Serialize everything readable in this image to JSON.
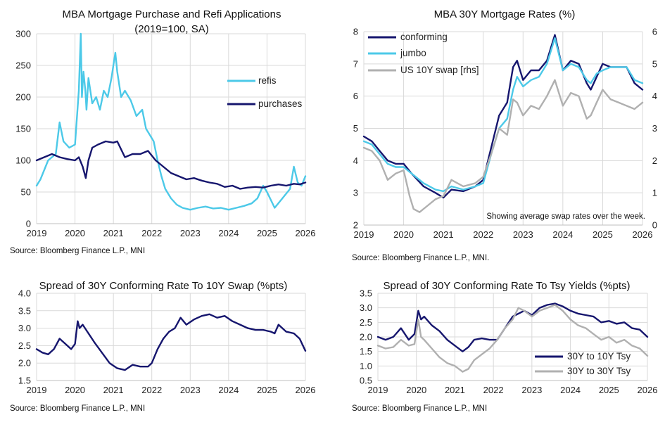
{
  "chart_data": [
    {
      "type": "line",
      "title": "MBA Mortgage Purchase and Refi Applications",
      "subtitle": "(2019=100, SA)",
      "source": "Source: Bloomberg Finance L.P., MNI",
      "xlim": [
        2019,
        2026
      ],
      "ylim": [
        0,
        300
      ],
      "x_ticks": [
        2019,
        2020,
        2021,
        2022,
        2023,
        2024,
        2025,
        2026
      ],
      "y_ticks": [
        0,
        50,
        100,
        150,
        200,
        250,
        300
      ],
      "legend_position": "right",
      "series": [
        {
          "name": "refis",
          "color": "#4cc9e8",
          "x": [
            2019.0,
            2019.1,
            2019.3,
            2019.5,
            2019.6,
            2019.7,
            2019.85,
            2020.0,
            2020.1,
            2020.15,
            2020.18,
            2020.22,
            2020.27,
            2020.3,
            2020.35,
            2020.45,
            2020.55,
            2020.65,
            2020.75,
            2020.85,
            2020.95,
            2021.0,
            2021.05,
            2021.1,
            2021.2,
            2021.3,
            2021.45,
            2021.6,
            2021.75,
            2021.85,
            2021.95,
            2022.05,
            2022.15,
            2022.25,
            2022.35,
            2022.5,
            2022.65,
            2022.8,
            2023.0,
            2023.2,
            2023.4,
            2023.6,
            2023.8,
            2024.0,
            2024.2,
            2024.4,
            2024.6,
            2024.75,
            2024.9,
            2025.0,
            2025.2,
            2025.4,
            2025.6,
            2025.7,
            2025.8,
            2025.9,
            2026.0
          ],
          "y": [
            60,
            70,
            100,
            110,
            160,
            130,
            120,
            125,
            210,
            300,
            200,
            240,
            210,
            180,
            230,
            190,
            200,
            180,
            210,
            200,
            230,
            250,
            270,
            240,
            200,
            210,
            195,
            170,
            180,
            150,
            140,
            130,
            100,
            75,
            55,
            40,
            30,
            25,
            22,
            25,
            27,
            24,
            25,
            22,
            25,
            28,
            32,
            40,
            60,
            50,
            25,
            40,
            55,
            90,
            65,
            60,
            75
          ]
        },
        {
          "name": "purchases",
          "color": "#16166e",
          "x": [
            2019.0,
            2019.2,
            2019.4,
            2019.6,
            2019.8,
            2020.0,
            2020.1,
            2020.2,
            2020.28,
            2020.35,
            2020.45,
            2020.6,
            2020.8,
            2021.0,
            2021.1,
            2021.3,
            2021.5,
            2021.7,
            2021.9,
            2022.1,
            2022.3,
            2022.5,
            2022.7,
            2022.9,
            2023.1,
            2023.3,
            2023.5,
            2023.7,
            2023.9,
            2024.1,
            2024.3,
            2024.5,
            2024.7,
            2024.9,
            2025.1,
            2025.3,
            2025.5,
            2025.7,
            2025.85,
            2026.0
          ],
          "y": [
            100,
            105,
            110,
            105,
            102,
            100,
            105,
            90,
            72,
            100,
            120,
            125,
            130,
            128,
            130,
            105,
            110,
            110,
            115,
            100,
            90,
            80,
            75,
            70,
            72,
            68,
            65,
            63,
            58,
            60,
            55,
            57,
            58,
            57,
            60,
            62,
            60,
            63,
            62,
            65
          ]
        }
      ]
    },
    {
      "type": "line",
      "title": "MBA 30Y Mortgage Rates (%)",
      "source": "Source: Bloomberg Finance L.P., MNI.",
      "annotation": "Showing average swap rates over the week.",
      "xlim": [
        2019,
        2026
      ],
      "ylim": [
        2,
        8
      ],
      "y2lim": [
        0,
        6
      ],
      "x_ticks": [
        2019,
        2020,
        2021,
        2022,
        2023,
        2024,
        2025,
        2026
      ],
      "y_ticks": [
        2,
        3,
        4,
        5,
        6,
        7,
        8
      ],
      "y2_ticks": [
        0,
        1,
        2,
        3,
        4,
        5,
        6
      ],
      "legend_position": "top-left",
      "series": [
        {
          "name": "conforming",
          "color": "#16166e",
          "axis": "left",
          "x": [
            2019.0,
            2019.2,
            2019.4,
            2019.6,
            2019.8,
            2020.0,
            2020.2,
            2020.5,
            2020.8,
            2021.0,
            2021.2,
            2021.5,
            2021.8,
            2022.0,
            2022.2,
            2022.4,
            2022.6,
            2022.75,
            2022.85,
            2023.0,
            2023.2,
            2023.4,
            2023.6,
            2023.8,
            2024.0,
            2024.2,
            2024.4,
            2024.6,
            2024.7,
            2024.85,
            2025.0,
            2025.2,
            2025.4,
            2025.6,
            2025.8,
            2026.0
          ],
          "y": [
            4.75,
            4.6,
            4.3,
            4.0,
            3.9,
            3.9,
            3.6,
            3.2,
            3.0,
            2.85,
            3.1,
            3.05,
            3.2,
            3.4,
            4.4,
            5.4,
            5.8,
            6.9,
            7.1,
            6.5,
            6.8,
            6.8,
            7.1,
            7.9,
            6.8,
            7.1,
            7.0,
            6.4,
            6.2,
            6.6,
            7.0,
            6.9,
            6.9,
            6.9,
            6.4,
            6.2
          ]
        },
        {
          "name": "jumbo",
          "color": "#4cc9e8",
          "axis": "left",
          "x": [
            2019.0,
            2019.2,
            2019.4,
            2019.6,
            2019.8,
            2020.0,
            2020.2,
            2020.5,
            2020.8,
            2021.0,
            2021.2,
            2021.5,
            2021.8,
            2022.0,
            2022.2,
            2022.4,
            2022.6,
            2022.75,
            2022.85,
            2023.0,
            2023.2,
            2023.4,
            2023.6,
            2023.8,
            2024.0,
            2024.2,
            2024.4,
            2024.6,
            2024.7,
            2024.85,
            2025.0,
            2025.2,
            2025.4,
            2025.6,
            2025.8,
            2026.0
          ],
          "y": [
            4.6,
            4.5,
            4.2,
            3.9,
            3.8,
            3.8,
            3.6,
            3.3,
            3.1,
            3.05,
            3.2,
            3.1,
            3.2,
            3.3,
            4.2,
            5.0,
            5.3,
            6.2,
            6.6,
            6.3,
            6.5,
            6.6,
            7.0,
            7.8,
            6.8,
            7.0,
            6.9,
            6.5,
            6.4,
            6.7,
            6.8,
            6.9,
            6.9,
            6.9,
            6.5,
            6.4
          ]
        },
        {
          "name": "US 10Y swap [rhs]",
          "color": "#b0b0b0",
          "axis": "right",
          "x": [
            2019.0,
            2019.2,
            2019.4,
            2019.6,
            2019.8,
            2020.0,
            2020.15,
            2020.25,
            2020.4,
            2020.6,
            2020.8,
            2021.0,
            2021.2,
            2021.5,
            2021.8,
            2022.0,
            2022.2,
            2022.4,
            2022.6,
            2022.75,
            2022.85,
            2023.0,
            2023.2,
            2023.4,
            2023.6,
            2023.8,
            2024.0,
            2024.2,
            2024.4,
            2024.6,
            2024.7,
            2024.85,
            2025.0,
            2025.2,
            2025.4,
            2025.6,
            2025.8,
            2026.0
          ],
          "y": [
            2.4,
            2.3,
            2.0,
            1.4,
            1.6,
            1.7,
            0.9,
            0.5,
            0.4,
            0.6,
            0.8,
            0.9,
            1.4,
            1.2,
            1.3,
            1.5,
            2.2,
            3.0,
            2.8,
            3.9,
            3.8,
            3.4,
            3.7,
            3.6,
            4.0,
            4.5,
            3.7,
            4.1,
            4.0,
            3.3,
            3.4,
            3.8,
            4.2,
            3.9,
            3.8,
            3.7,
            3.6,
            3.8
          ]
        }
      ]
    },
    {
      "type": "line",
      "title": "Spread of 30Y Conforming Rate To 10Y Swap (%pts)",
      "source": "Source: Bloomberg Finance L.P., MNI",
      "xlim": [
        2019,
        2026
      ],
      "ylim": [
        1.5,
        4.0
      ],
      "x_ticks": [
        2019,
        2020,
        2021,
        2022,
        2023,
        2024,
        2025,
        2026
      ],
      "y_ticks": [
        1.5,
        2.0,
        2.5,
        3.0,
        3.5,
        4.0
      ],
      "series": [
        {
          "name": "",
          "color": "#16166e",
          "x": [
            2019.0,
            2019.15,
            2019.3,
            2019.45,
            2019.6,
            2019.75,
            2019.9,
            2020.0,
            2020.07,
            2020.12,
            2020.2,
            2020.35,
            2020.5,
            2020.7,
            2020.9,
            2021.1,
            2021.3,
            2021.5,
            2021.7,
            2021.9,
            2022.0,
            2022.15,
            2022.3,
            2022.45,
            2022.6,
            2022.75,
            2022.9,
            2023.1,
            2023.3,
            2023.5,
            2023.7,
            2023.9,
            2024.1,
            2024.3,
            2024.5,
            2024.7,
            2024.9,
            2025.1,
            2025.2,
            2025.3,
            2025.5,
            2025.7,
            2025.85,
            2026.0
          ],
          "y": [
            2.4,
            2.3,
            2.25,
            2.4,
            2.7,
            2.55,
            2.4,
            2.55,
            3.2,
            3.0,
            3.1,
            2.85,
            2.6,
            2.3,
            2.0,
            1.85,
            1.8,
            1.95,
            1.9,
            1.9,
            2.0,
            2.4,
            2.7,
            2.9,
            3.0,
            3.3,
            3.1,
            3.25,
            3.35,
            3.4,
            3.3,
            3.35,
            3.2,
            3.1,
            3.0,
            2.95,
            2.95,
            2.9,
            2.85,
            3.1,
            2.9,
            2.85,
            2.7,
            2.35
          ]
        }
      ]
    },
    {
      "type": "line",
      "title": "Spread of 30Y Conforming Rate To Tsy Yields (%pts)",
      "source": "Source: Bloomberg Finance L.P., MNI",
      "xlim": [
        2019,
        2026
      ],
      "ylim": [
        0.5,
        3.5
      ],
      "x_ticks": [
        2019,
        2020,
        2021,
        2022,
        2023,
        2024,
        2025,
        2026
      ],
      "y_ticks": [
        0.5,
        1.0,
        1.5,
        2.0,
        2.5,
        3.0,
        3.5
      ],
      "legend_position": "bottom-right",
      "series": [
        {
          "name": "30Y to 10Y Tsy",
          "color": "#16166e",
          "x": [
            2019.0,
            2019.2,
            2019.4,
            2019.6,
            2019.8,
            2019.95,
            2020.05,
            2020.12,
            2020.2,
            2020.4,
            2020.6,
            2020.8,
            2021.0,
            2021.2,
            2021.35,
            2021.5,
            2021.7,
            2021.9,
            2022.1,
            2022.3,
            2022.5,
            2022.65,
            2022.8,
            2023.0,
            2023.2,
            2023.4,
            2023.6,
            2023.8,
            2024.0,
            2024.2,
            2024.4,
            2024.6,
            2024.8,
            2025.0,
            2025.2,
            2025.4,
            2025.6,
            2025.8,
            2026.0
          ],
          "y": [
            2.0,
            1.9,
            2.0,
            2.3,
            1.9,
            2.1,
            2.9,
            2.6,
            2.7,
            2.4,
            2.2,
            1.9,
            1.7,
            1.5,
            1.65,
            1.9,
            1.95,
            1.9,
            1.9,
            2.3,
            2.7,
            2.8,
            2.9,
            2.75,
            3.0,
            3.1,
            3.15,
            3.05,
            2.9,
            2.8,
            2.75,
            2.7,
            2.5,
            2.55,
            2.45,
            2.5,
            2.3,
            2.25,
            2.0
          ]
        },
        {
          "name": "30Y to 30Y Tsy",
          "color": "#b0b0b0",
          "x": [
            2019.0,
            2019.2,
            2019.4,
            2019.6,
            2019.8,
            2019.95,
            2020.05,
            2020.12,
            2020.2,
            2020.4,
            2020.6,
            2020.8,
            2021.0,
            2021.2,
            2021.35,
            2021.5,
            2021.7,
            2021.9,
            2022.1,
            2022.3,
            2022.5,
            2022.65,
            2022.8,
            2023.0,
            2023.2,
            2023.4,
            2023.6,
            2023.8,
            2024.0,
            2024.2,
            2024.4,
            2024.6,
            2024.8,
            2025.0,
            2025.2,
            2025.4,
            2025.6,
            2025.8,
            2026.0
          ],
          "y": [
            1.7,
            1.6,
            1.65,
            1.9,
            1.7,
            1.75,
            2.6,
            2.0,
            1.9,
            1.6,
            1.3,
            1.1,
            1.0,
            0.8,
            0.9,
            1.2,
            1.4,
            1.6,
            1.9,
            2.3,
            2.6,
            3.0,
            2.9,
            2.7,
            2.9,
            3.0,
            3.1,
            2.9,
            2.6,
            2.4,
            2.3,
            2.1,
            1.9,
            2.0,
            1.8,
            1.9,
            1.7,
            1.6,
            1.35
          ]
        }
      ]
    }
  ]
}
